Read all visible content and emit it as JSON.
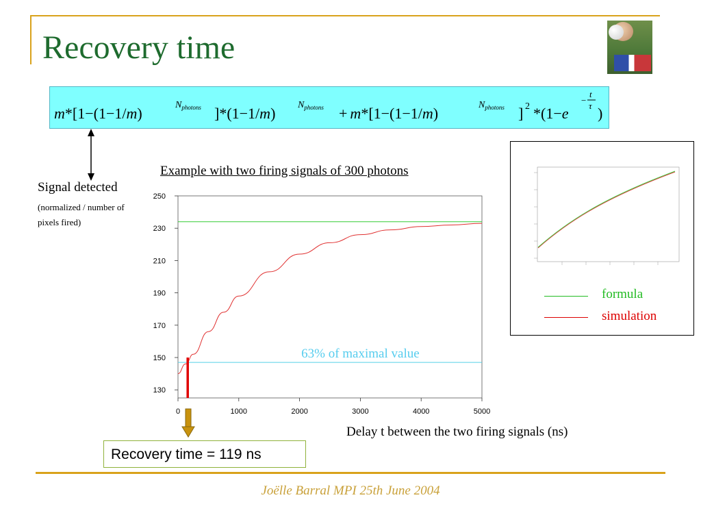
{
  "slide": {
    "title": "Recovery time",
    "footer": "Joëlle Barral MPI 25th June 2004"
  },
  "formula": {
    "segments": [
      "m",
      "*[1−(1−1/",
      "m",
      ")",
      "]*(1−1/",
      "m",
      ")",
      "+",
      "m",
      "*[1−(1−1/",
      "m",
      ")",
      "]",
      "2",
      "*(1−",
      "e",
      ")"
    ],
    "exponent_base": "N",
    "exponent_sub": "photons",
    "frac_num": "t",
    "frac_den": "τ",
    "minus": "−"
  },
  "signal": {
    "label": "Signal detected",
    "sublabel_line1": "(normalized / number of",
    "sublabel_line2": "pixels fired)"
  },
  "chart_title": "Example with two firing signals of 300 photons",
  "chart_data": {
    "type": "line",
    "xlabel": "Delay t between the two firing signals (ns)",
    "ylabel": "",
    "xlim": [
      0,
      5000
    ],
    "ylim": [
      125,
      250
    ],
    "x_ticks": [
      "0",
      "1000",
      "2000",
      "3000",
      "4000",
      "5000"
    ],
    "y_ticks": [
      "130",
      "150",
      "170",
      "190",
      "210",
      "230",
      "250"
    ],
    "series": [
      {
        "name": "formula",
        "color": "#33cc33",
        "x": [
          0,
          5000
        ],
        "y": [
          234,
          234
        ]
      },
      {
        "name": "simulation",
        "color": "#e03030",
        "x": [
          0,
          125,
          250,
          500,
          750,
          1000,
          1500,
          2000,
          2500,
          3000,
          3500,
          4000,
          4500,
          5000
        ],
        "y": [
          140,
          146,
          152,
          166,
          178,
          188,
          203,
          214,
          221,
          226,
          229,
          231,
          232,
          233
        ]
      },
      {
        "color": "#55d0e8",
        "x": [
          0,
          5000
        ],
        "y": [
          147,
          147
        ]
      }
    ],
    "annotations": [
      {
        "text": "63% of maximal value",
        "x": 3000,
        "y": 150,
        "color": "#55ccee"
      },
      {
        "marker": "red-bar",
        "x": 160,
        "y_from": 125,
        "y_to": 150,
        "color": "#e00000"
      }
    ]
  },
  "recovery": {
    "text": "Recovery time = 119 ns"
  },
  "inset": {
    "legend": [
      {
        "label": "formula",
        "color": "#22bb22"
      },
      {
        "label": "simulation",
        "color": "#dd0000"
      }
    ]
  },
  "colors": {
    "accent_gold": "#d9a21b",
    "title_green": "#1e6b2e",
    "formula_bg": "#7fffff",
    "arrow_gold": "#b8860b"
  }
}
